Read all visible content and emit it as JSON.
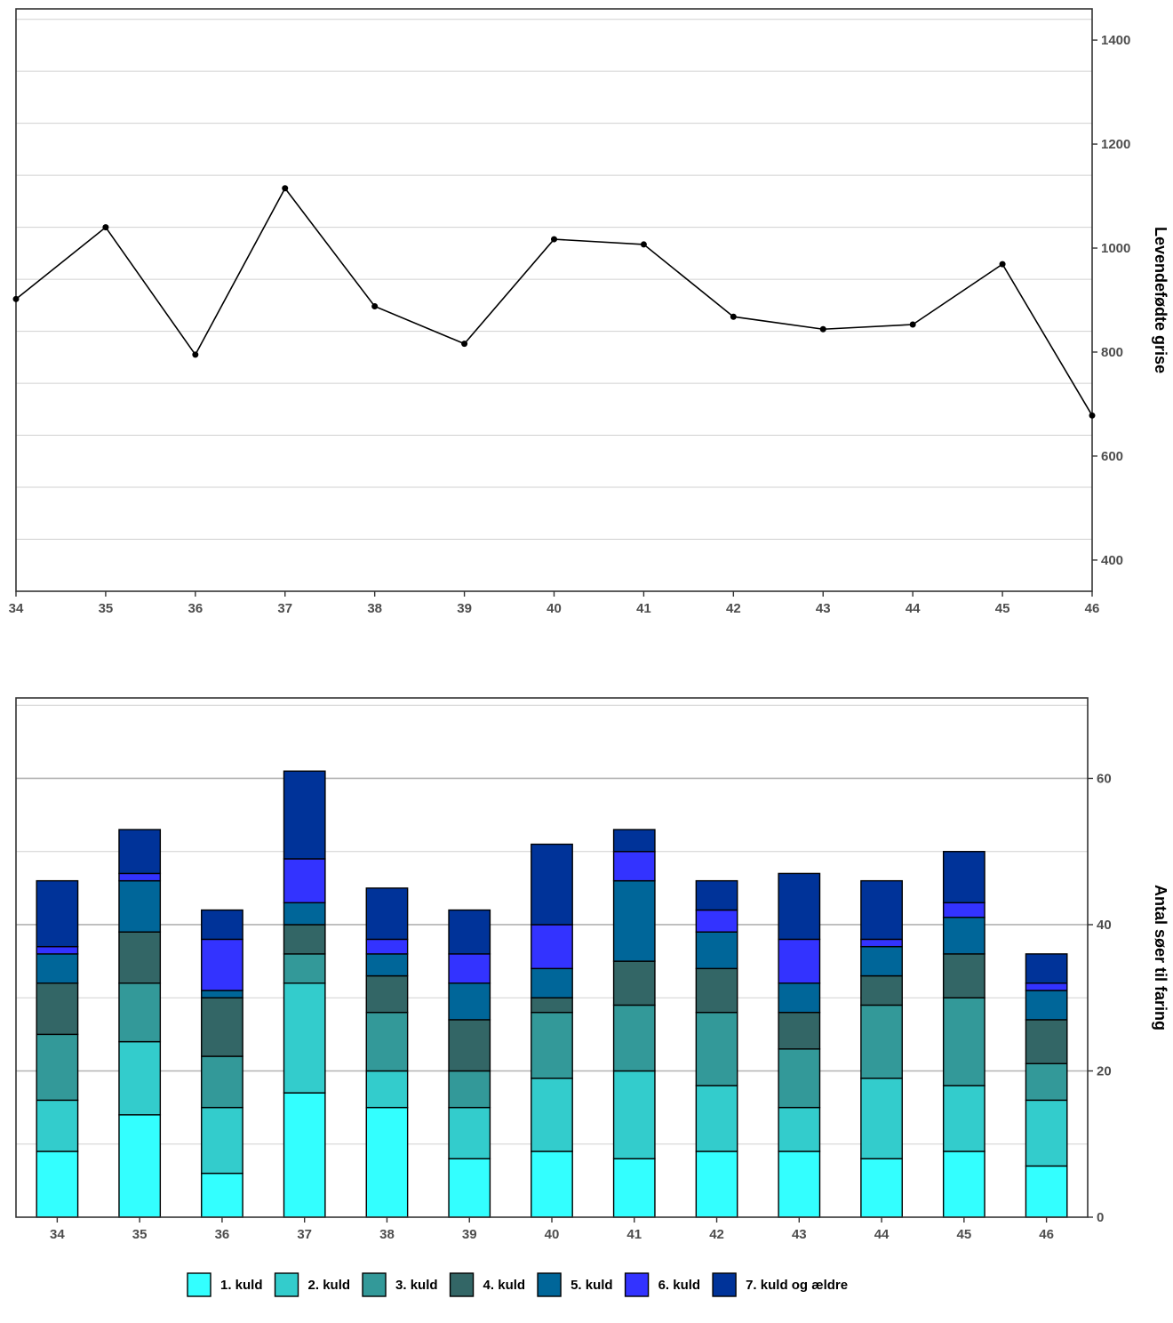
{
  "chart_data": [
    {
      "type": "line",
      "title": "",
      "xlabel": "",
      "ylabel": "Levendefødte grise",
      "x": [
        34,
        35,
        36,
        37,
        38,
        39,
        40,
        41,
        42,
        43,
        44,
        45,
        46
      ],
      "series": [
        {
          "values": [
            902,
            1040,
            795,
            1115,
            888,
            816,
            1017,
            1007,
            868,
            844,
            853,
            969,
            678
          ]
        }
      ],
      "xlim": [
        34,
        46
      ],
      "ylim": [
        340,
        1460
      ],
      "yticks": [
        400,
        600,
        800,
        1000,
        1200,
        1400
      ],
      "yaxis_position": "right",
      "grid": true,
      "line_color": "#000000"
    },
    {
      "type": "bar",
      "stacked": true,
      "title": "",
      "xlabel": "",
      "ylabel": "Antal søer til faring",
      "categories": [
        "34",
        "35",
        "36",
        "37",
        "38",
        "39",
        "40",
        "41",
        "42",
        "43",
        "44",
        "45",
        "46"
      ],
      "ylim": [
        0,
        71
      ],
      "yticks": [
        0,
        20,
        40,
        60
      ],
      "yaxis_position": "right",
      "grid": true,
      "legend_position": "bottom",
      "series": [
        {
          "name": "1. kuld",
          "color": "#33FFFF",
          "values": [
            9,
            14,
            6,
            17,
            15,
            8,
            9,
            8,
            9,
            9,
            8,
            9,
            7
          ]
        },
        {
          "name": "2. kuld",
          "color": "#33CCCC",
          "values": [
            7,
            10,
            9,
            15,
            5,
            7,
            10,
            12,
            9,
            6,
            11,
            9,
            9
          ]
        },
        {
          "name": "3. kuld",
          "color": "#339999",
          "values": [
            9,
            8,
            7,
            4,
            8,
            5,
            9,
            9,
            10,
            8,
            10,
            12,
            5
          ]
        },
        {
          "name": "4. kuld",
          "color": "#336666",
          "values": [
            7,
            7,
            8,
            4,
            5,
            7,
            2,
            6,
            6,
            5,
            4,
            6,
            6
          ]
        },
        {
          "name": "5. kuld",
          "color": "#006699",
          "values": [
            4,
            7,
            1,
            3,
            3,
            5,
            4,
            11,
            5,
            4,
            4,
            5,
            4
          ]
        },
        {
          "name": "6. kuld",
          "color": "#3333FF",
          "values": [
            1,
            1,
            7,
            6,
            2,
            4,
            6,
            4,
            3,
            6,
            1,
            2,
            1
          ]
        },
        {
          "name": "7. kuld og ældre",
          "color": "#003399",
          "values": [
            9,
            6,
            4,
            12,
            7,
            6,
            11,
            3,
            4,
            9,
            8,
            7,
            4
          ]
        }
      ]
    }
  ]
}
